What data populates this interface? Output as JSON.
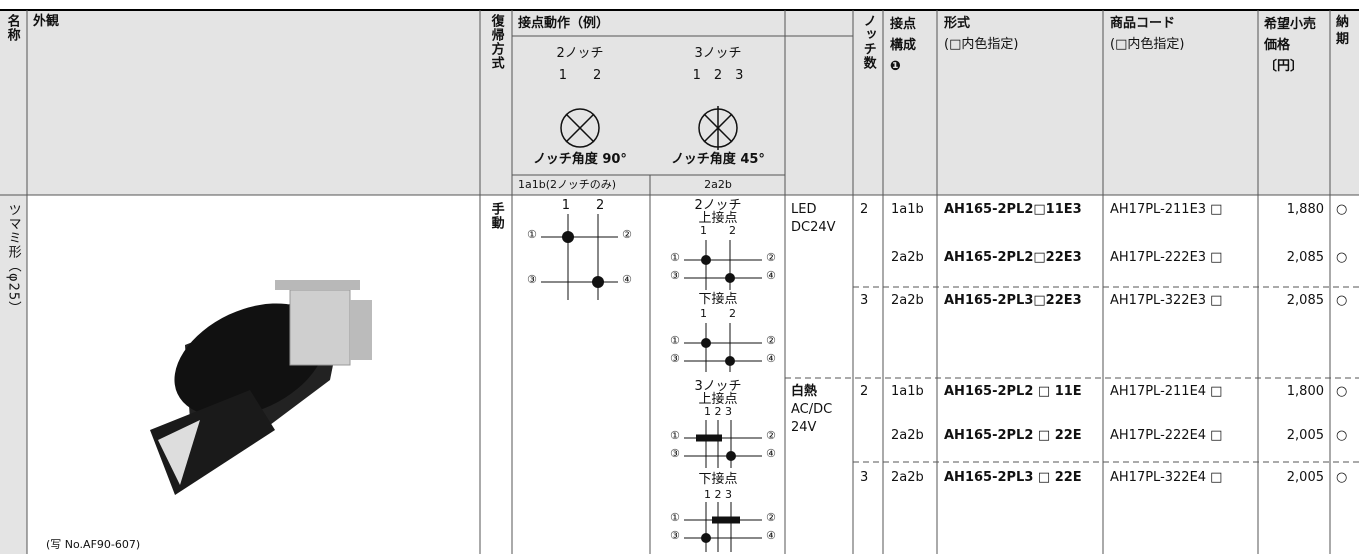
{
  "header": {
    "name": "名称",
    "appearance": "外観",
    "return_method": "復帰方式",
    "contact_action": "接点動作（例）",
    "notch2": "2ノッチ",
    "notch2_positions": "1　　2",
    "notch2_angle": "ノッチ角度 90°",
    "notch3": "3ノッチ",
    "notch3_positions": "1　2　3",
    "notch3_angle": "ノッチ角度 45°",
    "sub1": "1a1b(2ノッチのみ)",
    "sub2": "2a2b",
    "notch_count": "ノッチ数",
    "contact_config": "接点構成",
    "contact_config_mark": "❶",
    "model": "形式",
    "model_note": "(□内色指定)",
    "code": "商品コード",
    "code_note": "(□内色指定)",
    "price": "希望小売価格〔円〕",
    "delivery": "納期"
  },
  "product": {
    "name": "ツマミ形（φ25）",
    "photo_caption": "(写 No.AF90-607)",
    "return_method": "手動"
  },
  "diagrams": {
    "circled": [
      "①",
      "②",
      "③",
      "④"
    ],
    "pos2": "1　　2",
    "pos3": "1 2 3",
    "notch2": "2ノッチ",
    "notch3": "3ノッチ",
    "upper": "上接点",
    "lower": "下接点"
  },
  "lamps": [
    {
      "line1": "LED",
      "line2": "DC24V"
    },
    {
      "line1": "白熱",
      "line2": "AC/DC",
      "line3": "24V"
    }
  ],
  "rows": [
    {
      "notch": "2",
      "contact": "1a1b",
      "model": "AH165-2PL2□11E3",
      "code": "AH17PL-211E3 □",
      "price": "1,880",
      "delivery": "○"
    },
    {
      "notch": "",
      "contact": "2a2b",
      "model": "AH165-2PL2□22E3",
      "code": "AH17PL-222E3 □",
      "price": "2,085",
      "delivery": "○"
    },
    {
      "notch": "3",
      "contact": "2a2b",
      "model": "AH165-2PL3□22E3",
      "code": "AH17PL-322E3 □",
      "price": "2,085",
      "delivery": "○"
    },
    {
      "notch": "2",
      "contact": "1a1b",
      "model": "AH165-2PL2 □ 11E",
      "code": "AH17PL-211E4 □",
      "price": "1,800",
      "delivery": "○"
    },
    {
      "notch": "",
      "contact": "2a2b",
      "model": "AH165-2PL2 □ 22E",
      "code": "AH17PL-222E4 □",
      "price": "2,005",
      "delivery": "○"
    },
    {
      "notch": "3",
      "contact": "2a2b",
      "model": "AH165-2PL3 □ 22E",
      "code": "AH17PL-322E4 □",
      "price": "2,005",
      "delivery": "○"
    }
  ]
}
